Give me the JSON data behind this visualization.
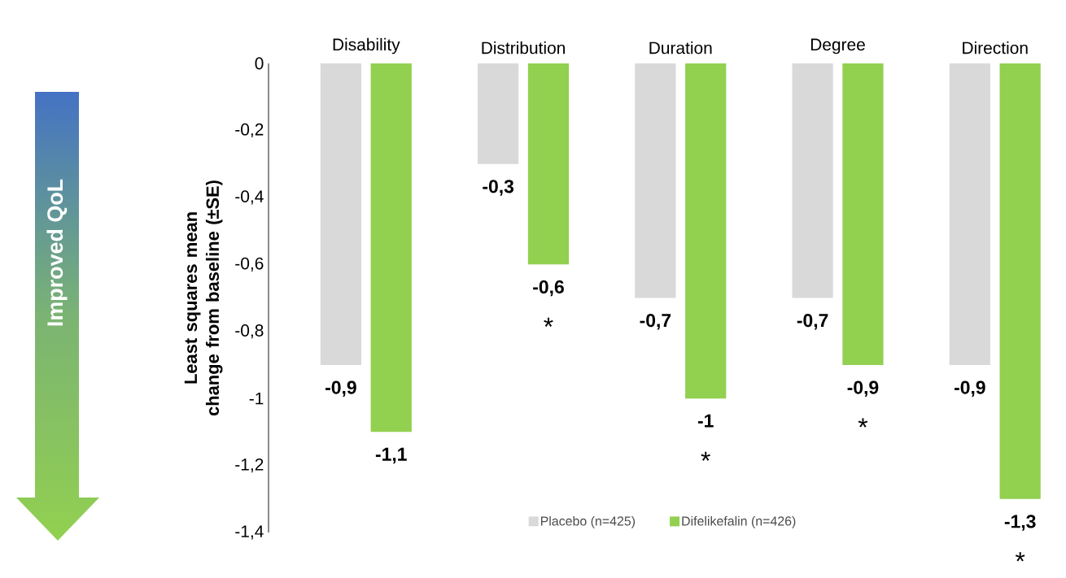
{
  "chart_data": {
    "type": "bar",
    "ylabel": "Least squares mean change from baseline (±SE)",
    "categories": [
      "Disability",
      "Distribution",
      "Duration",
      "Degree",
      "Direction"
    ],
    "series": [
      {
        "name": "Placebo (n=425)",
        "color": "#d9d9d9",
        "values": [
          -0.9,
          -0.3,
          -0.7,
          -0.7,
          -0.9
        ],
        "value_labels": [
          "-0,9",
          "-0,3",
          "-0,7",
          "-0,7",
          "-0,9"
        ]
      },
      {
        "name": "Difelikefalin (n=426)",
        "color": "#92d050",
        "values": [
          -1.1,
          -0.6,
          -1,
          -0.9,
          -1.3
        ],
        "value_labels": [
          "-1,1",
          "-0,6",
          "-1",
          "-0,9",
          "-1,3"
        ]
      }
    ],
    "ylim": [
      -1.4,
      0
    ],
    "yticks": [
      {
        "value": -1.4,
        "label": "-1,4"
      },
      {
        "value": -1.2,
        "label": "-1,2"
      },
      -1,
      {
        "value": -0.8,
        "label": "-0,8"
      },
      {
        "value": -0.6,
        "label": "-0,6"
      },
      {
        "value": -0.4,
        "label": "-0,4"
      },
      {
        "value": -0.2,
        "label": "-0,2"
      },
      0
    ],
    "legend": "bottom",
    "annotations": [
      "Improved QoL",
      "*",
      "*",
      "*",
      "*"
    ]
  }
}
